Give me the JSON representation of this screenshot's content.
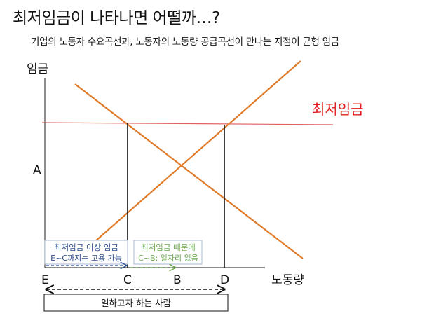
{
  "title": "최저임금이 나타나면 어떨까…?",
  "subtitle": "기업의 노동자 수요곡선과, 노동자의 노동량 공급곡선이 만나는 지점이 균형 임금",
  "axes": {
    "y_label": "임금",
    "x_label": "노동량"
  },
  "min_wage_label": "최저임금",
  "y_tick_label": "A",
  "x_points": [
    "E",
    "C",
    "B",
    "D"
  ],
  "box_blue": {
    "line1": "최저임금 이상 임금",
    "line2": "E~C까지는 고용 가능"
  },
  "box_green": {
    "line1": "최저임금 때문에",
    "line2": "C~B: 일자리 잃음"
  },
  "bottom_box": "일하고자 하는 사람",
  "colors": {
    "curve": "#e07b2a",
    "min_wage": "#e06060",
    "min_wage_text": "#e02020",
    "blue": "#2e4f8f",
    "green": "#6aa84f",
    "box_border": "#a9b8d6"
  }
}
